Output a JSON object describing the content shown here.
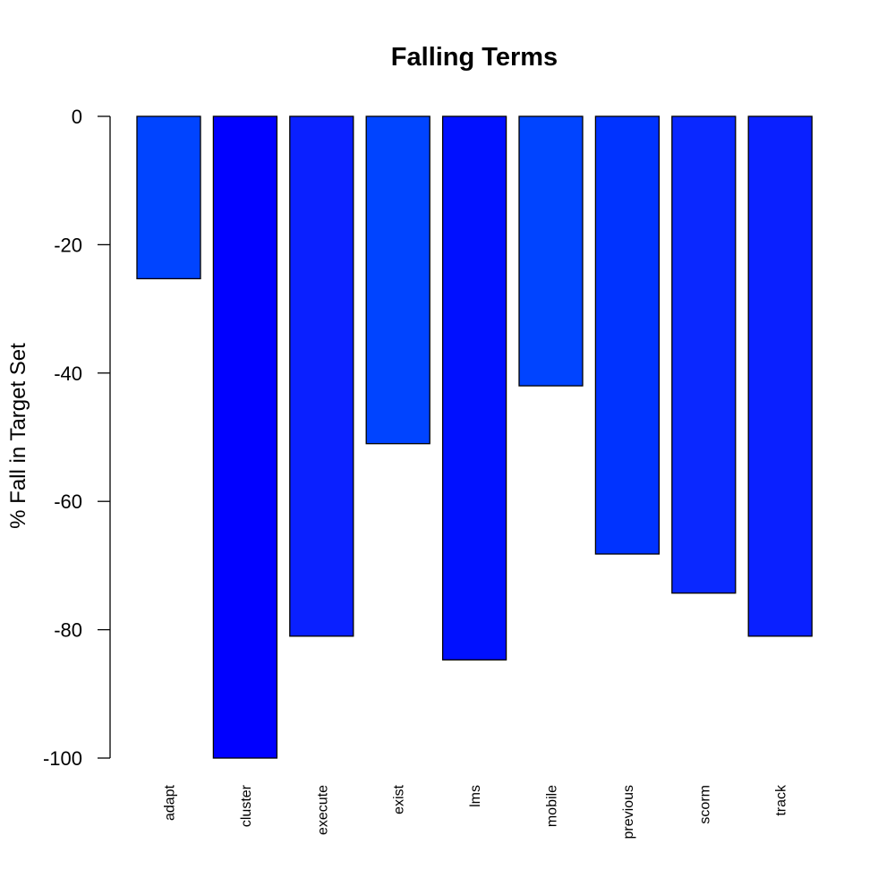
{
  "chart_data": {
    "type": "bar",
    "title": "Falling Terms",
    "xlabel": "",
    "ylabel": "% Fall in Target Set",
    "categories": [
      "adapt",
      "cluster",
      "execute",
      "exist",
      "lms",
      "mobile",
      "previous",
      "scorm",
      "track"
    ],
    "values": [
      -25.3,
      -100,
      -81,
      -51,
      -84.7,
      -42,
      -68.2,
      -74.3,
      -81
    ],
    "colors": [
      "#0044ff",
      "#0000ff",
      "#0a20ff",
      "#0044ff",
      "#0010ff",
      "#0044ff",
      "#0033ff",
      "#0a28ff",
      "#0a20ff"
    ],
    "ylim": [
      -100,
      0
    ],
    "yticks": [
      0,
      -20,
      -40,
      -60,
      -80,
      -100
    ],
    "grid": false,
    "legend": "none"
  }
}
